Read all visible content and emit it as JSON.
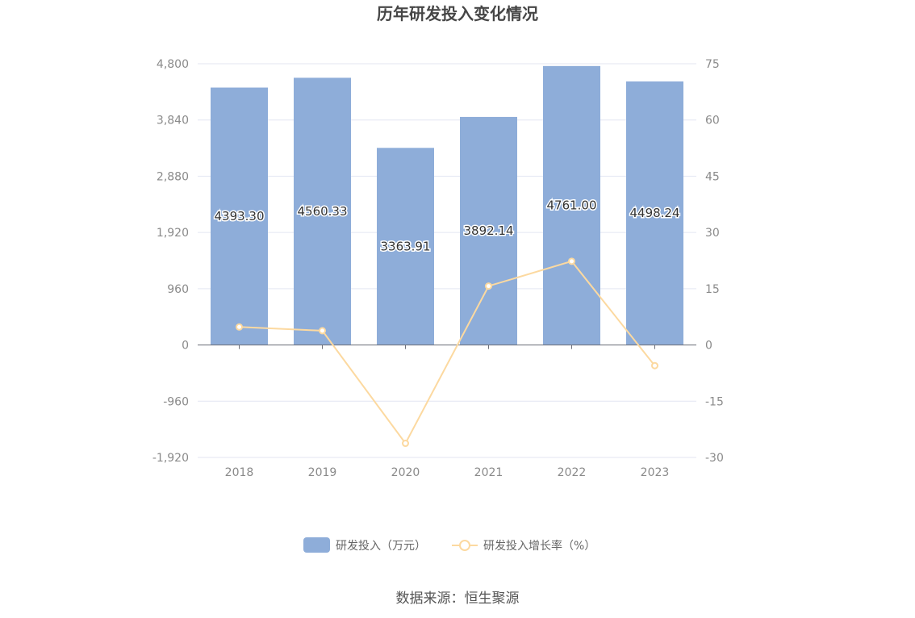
{
  "chart_data": {
    "type": "bar",
    "title": "历年研发投入变化情况",
    "categories": [
      "2018",
      "2019",
      "2020",
      "2021",
      "2022",
      "2023"
    ],
    "series": [
      {
        "name": "研发投入（万元）",
        "type": "bar",
        "axis": "left",
        "values": [
          4393.3,
          4560.33,
          3363.91,
          3892.14,
          4761.0,
          4498.24
        ],
        "labels": [
          "4393.30",
          "4560.33",
          "3363.91",
          "3892.14",
          "4761.00",
          "4498.24"
        ],
        "color": "#8eadd9"
      },
      {
        "name": "研发投入增长率（%）",
        "type": "line",
        "axis": "right",
        "values": [
          4.8,
          3.8,
          -26.24,
          15.7,
          22.32,
          -5.52
        ],
        "color": "#fcd9a0"
      }
    ],
    "y_left": {
      "ylim": [
        -1920,
        4800
      ],
      "ticks": [
        "4,800",
        "3,840",
        "2,880",
        "1,920",
        "960",
        "0",
        "-960",
        "-1,920"
      ]
    },
    "y_right": {
      "ylim": [
        -30,
        75
      ],
      "ticks": [
        "75",
        "60",
        "45",
        "30",
        "15",
        "0",
        "-15",
        "-30"
      ]
    },
    "grid": true,
    "legend": "bottom-center"
  },
  "source": "数据来源：恒生聚源"
}
